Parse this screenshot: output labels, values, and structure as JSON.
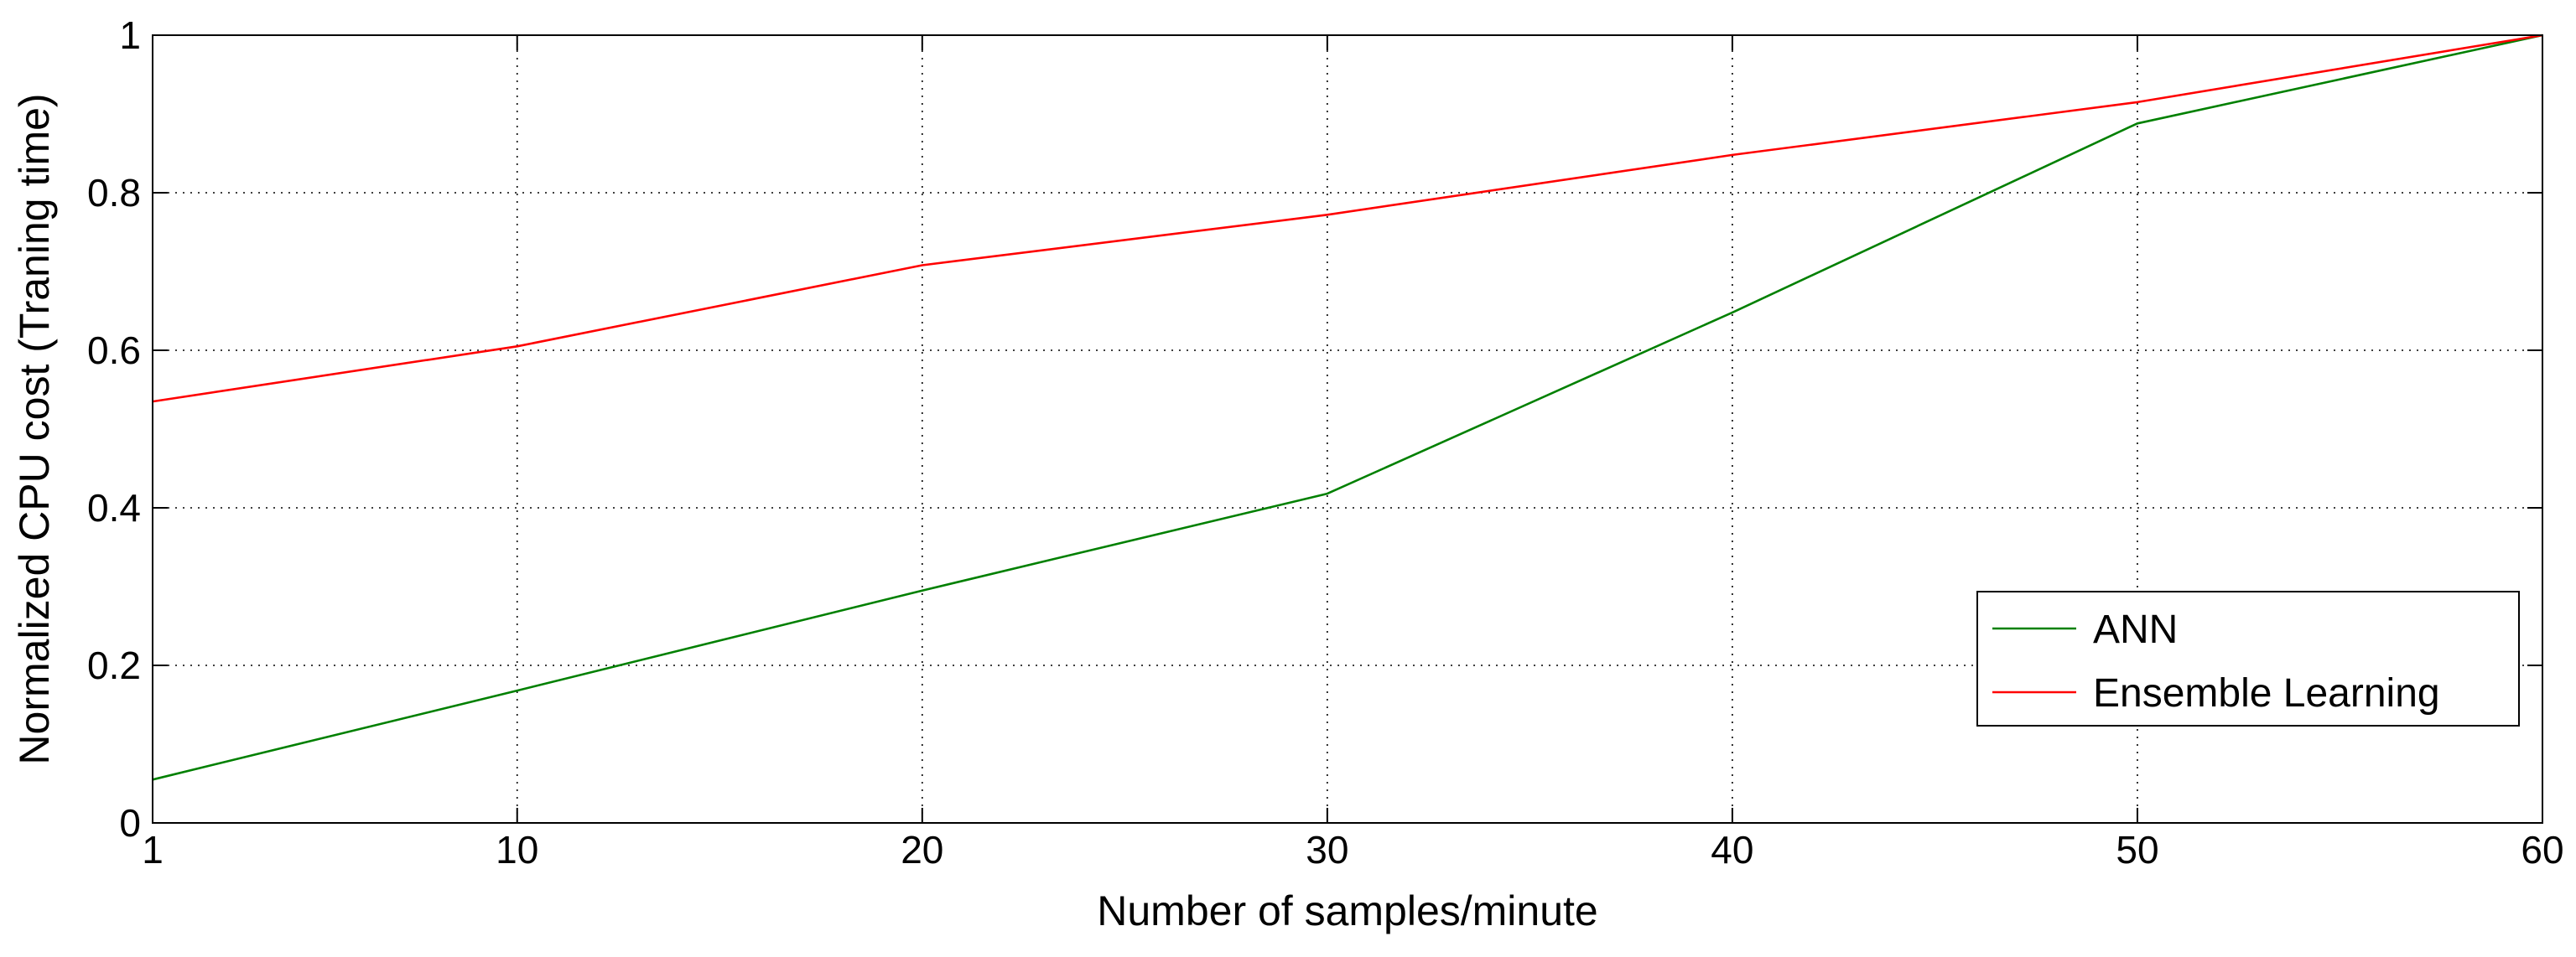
{
  "chart_data": {
    "type": "line",
    "title": "",
    "xlabel": "Number of samples/minute",
    "ylabel": "Normalized CPU cost (Traning time)",
    "xlim": [
      1,
      60
    ],
    "ylim": [
      0,
      1
    ],
    "xticks": [
      1,
      10,
      20,
      30,
      40,
      50,
      60
    ],
    "xtick_labels": [
      "1",
      "10",
      "20",
      "30",
      "40",
      "50",
      "60"
    ],
    "yticks": [
      0,
      0.2,
      0.4,
      0.6,
      0.8,
      1
    ],
    "ytick_labels": [
      "0",
      "0.2",
      "0.4",
      "0.6",
      "0.8",
      "1"
    ],
    "grid": true,
    "legend_position": "bottom-right",
    "x": [
      1,
      10,
      20,
      30,
      40,
      50,
      60
    ],
    "series": [
      {
        "name": "ANN",
        "color": "#008000",
        "values": [
          0.055,
          0.168,
          0.295,
          0.418,
          0.648,
          0.888,
          1.0
        ]
      },
      {
        "name": "Ensemble Learning",
        "color": "#ff0000",
        "values": [
          0.535,
          0.605,
          0.708,
          0.772,
          0.848,
          0.915,
          1.0
        ]
      }
    ]
  }
}
